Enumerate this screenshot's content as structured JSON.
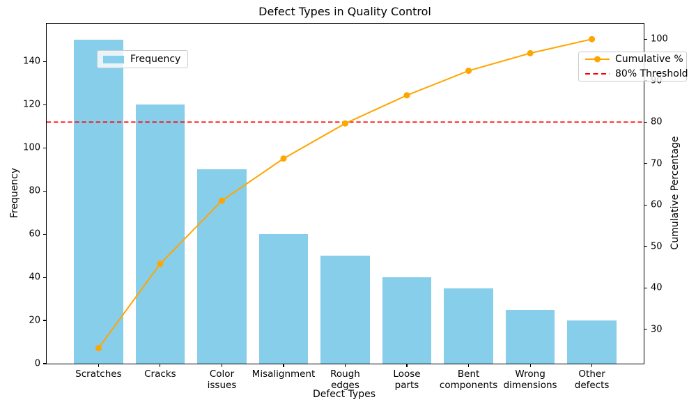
{
  "chart_data": {
    "type": "bar",
    "title": "Defect Types in Quality Control",
    "xlabel": "Defect Types",
    "ylabel": "Frequency",
    "ylabel_right": "Cumulative Percentage",
    "categories": [
      "Scratches",
      "Cracks",
      "Color\nissues",
      "Misalignment",
      "Rough\nedges",
      "Loose\nparts",
      "Bent\ncomponents",
      "Wrong\ndimensions",
      "Other\ndefects"
    ],
    "series": [
      {
        "name": "Frequency",
        "type": "bar",
        "axis": "left",
        "values": [
          150,
          120,
          90,
          60,
          50,
          40,
          35,
          25,
          20
        ]
      },
      {
        "name": "Cumulative %",
        "type": "line",
        "axis": "right",
        "values": [
          25.42,
          45.76,
          61.02,
          71.19,
          79.66,
          86.44,
          92.37,
          96.61,
          100.0
        ]
      }
    ],
    "threshold": {
      "name": "80% Threshold",
      "value": 80,
      "axis": "right",
      "style": "dashed"
    },
    "axes": {
      "left": {
        "ticks": [
          0,
          20,
          40,
          60,
          80,
          100,
          120,
          140
        ],
        "lim": [
          0,
          157.5
        ]
      },
      "right": {
        "ticks": [
          30,
          40,
          50,
          60,
          70,
          80,
          90,
          100
        ],
        "lim": [
          21.69,
          103.73
        ]
      }
    },
    "legend": {
      "frequency": "Frequency",
      "cumulative": "Cumulative %",
      "threshold": "80% Threshold"
    },
    "colors": {
      "bar": "#87CEEB",
      "line": "#FFA500",
      "threshold": "#FF0000",
      "text": "#000000"
    },
    "grid": false,
    "legend_positions": {
      "frequency": "upper-left",
      "cumulative": "upper-right"
    }
  }
}
